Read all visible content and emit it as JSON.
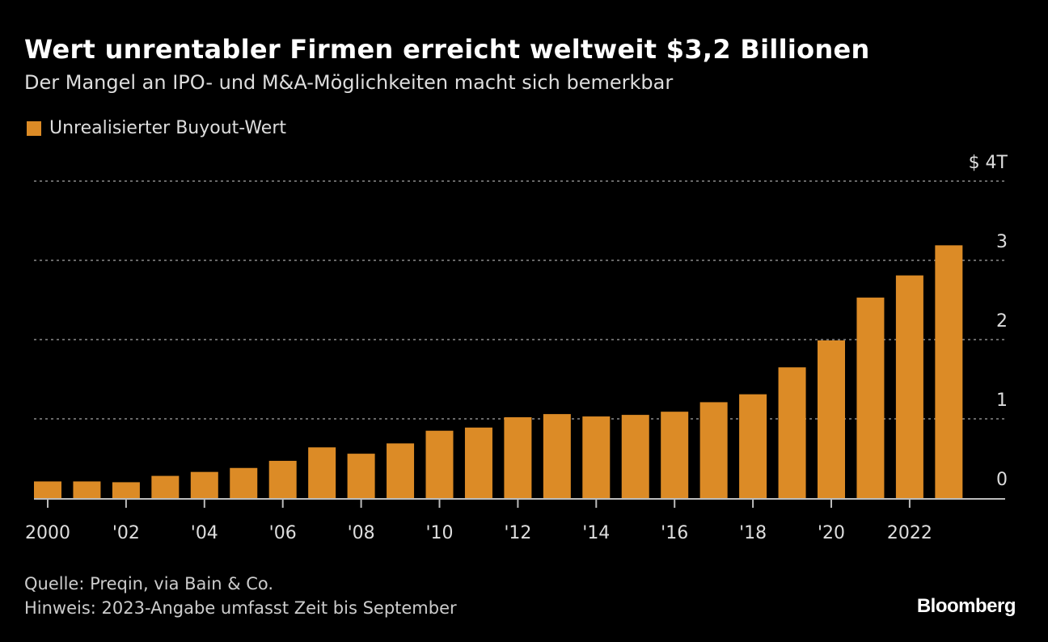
{
  "chart_data": {
    "type": "bar",
    "title": "Wert unrentabler Firmen erreicht weltweit $3,2 Billionen",
    "subtitle": "Der Mangel an IPO- und M&A-Möglichkeiten macht sich bemerkbar",
    "legend": "top-left",
    "series": [
      {
        "name": "Unrealisierter Buyout-Wert",
        "color": "#dc8b26"
      }
    ],
    "categories": [
      2000,
      2001,
      2002,
      2003,
      2004,
      2005,
      2006,
      2007,
      2008,
      2009,
      2010,
      2011,
      2012,
      2013,
      2014,
      2015,
      2016,
      2017,
      2018,
      2019,
      2020,
      2021,
      2022,
      2023
    ],
    "values": [
      0.21,
      0.21,
      0.2,
      0.28,
      0.33,
      0.38,
      0.47,
      0.64,
      0.56,
      0.69,
      0.85,
      0.89,
      1.02,
      1.06,
      1.03,
      1.05,
      1.09,
      1.21,
      1.31,
      1.65,
      1.99,
      2.53,
      2.81,
      3.19
    ],
    "x_ticks": [
      {
        "year": 2000,
        "label": "2000"
      },
      {
        "year": 2002,
        "label": "'02"
      },
      {
        "year": 2004,
        "label": "'04"
      },
      {
        "year": 2006,
        "label": "'06"
      },
      {
        "year": 2008,
        "label": "'08"
      },
      {
        "year": 2010,
        "label": "'10"
      },
      {
        "year": 2012,
        "label": "'12"
      },
      {
        "year": 2014,
        "label": "'14"
      },
      {
        "year": 2016,
        "label": "'16"
      },
      {
        "year": 2018,
        "label": "'18"
      },
      {
        "year": 2020,
        "label": "'20"
      },
      {
        "year": 2022,
        "label": "2022"
      }
    ],
    "y_ticks": [
      {
        "value": 0,
        "label": "0"
      },
      {
        "value": 1,
        "label": "1"
      },
      {
        "value": 2,
        "label": "2"
      },
      {
        "value": 3,
        "label": "3"
      },
      {
        "value": 4,
        "label": "$ 4T"
      }
    ],
    "ylim": [
      0,
      4
    ],
    "grid": true,
    "xlabel": "",
    "ylabel": ""
  },
  "footer": {
    "source": "Quelle: Preqin, via Bain & Co.",
    "note": "Hinweis: 2023-Angabe umfasst Zeit bis September",
    "brand": "Bloomberg"
  }
}
